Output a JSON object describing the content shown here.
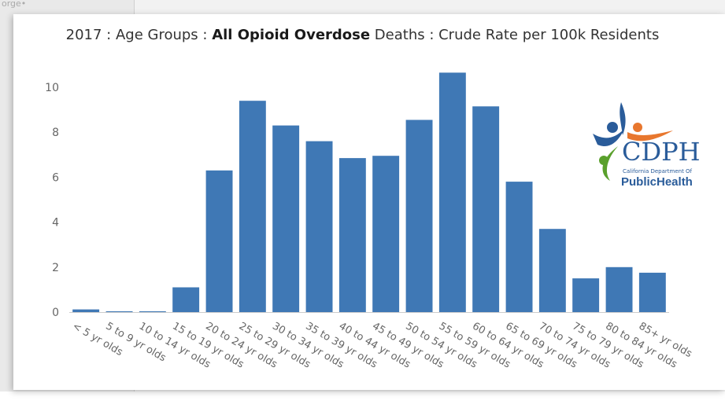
{
  "background": {
    "breadcrumb": "orge•"
  },
  "title": {
    "prefix": "2017 : Age Groups : ",
    "bold": "All Opioid Overdose",
    "suffix": " Deaths : Crude Rate per 100k Residents"
  },
  "colors": {
    "bar": "#3f78b5",
    "axis_text": "#666666",
    "grid": "#e8e8e8"
  },
  "logo": {
    "name": "CDPH",
    "subtitle": "California Department Of",
    "tagline": "PublicHealth",
    "colors": {
      "blue": "#2a5c9a",
      "green": "#5aa02c",
      "orange": "#e8772e"
    }
  },
  "chart_data": {
    "type": "bar",
    "title": "2017 : Age Groups : All Opioid Overdose Deaths : Crude Rate per 100k Residents",
    "categories": [
      "< 5 yr olds",
      "5 to 9 yr olds",
      "10 to 14 yr olds",
      "15 to 19 yr olds",
      "20 to 24 yr olds",
      "25 to 29 yr olds",
      "30 to 34 yr olds",
      "35 to 39 yr olds",
      "40 to 44 yr olds",
      "45 to 49 yr olds",
      "50 to 54 yr olds",
      "55 to 59 yr olds",
      "60 to 64 yr olds",
      "65 to 69 yr olds",
      "70 to 74 yr olds",
      "75 to 79 yr olds",
      "80 to 84 yr olds",
      "85+ yr olds"
    ],
    "values": [
      0.12,
      0.02,
      0.03,
      1.1,
      6.3,
      9.4,
      8.3,
      7.6,
      6.85,
      6.95,
      8.55,
      10.65,
      9.15,
      5.8,
      3.7,
      1.5,
      2.0,
      1.75
    ],
    "yticks": [
      0,
      2,
      4,
      6,
      8,
      10
    ],
    "ylim": [
      0,
      11
    ],
    "xlabel": "",
    "ylabel": "",
    "grid": false,
    "legend": "none"
  }
}
